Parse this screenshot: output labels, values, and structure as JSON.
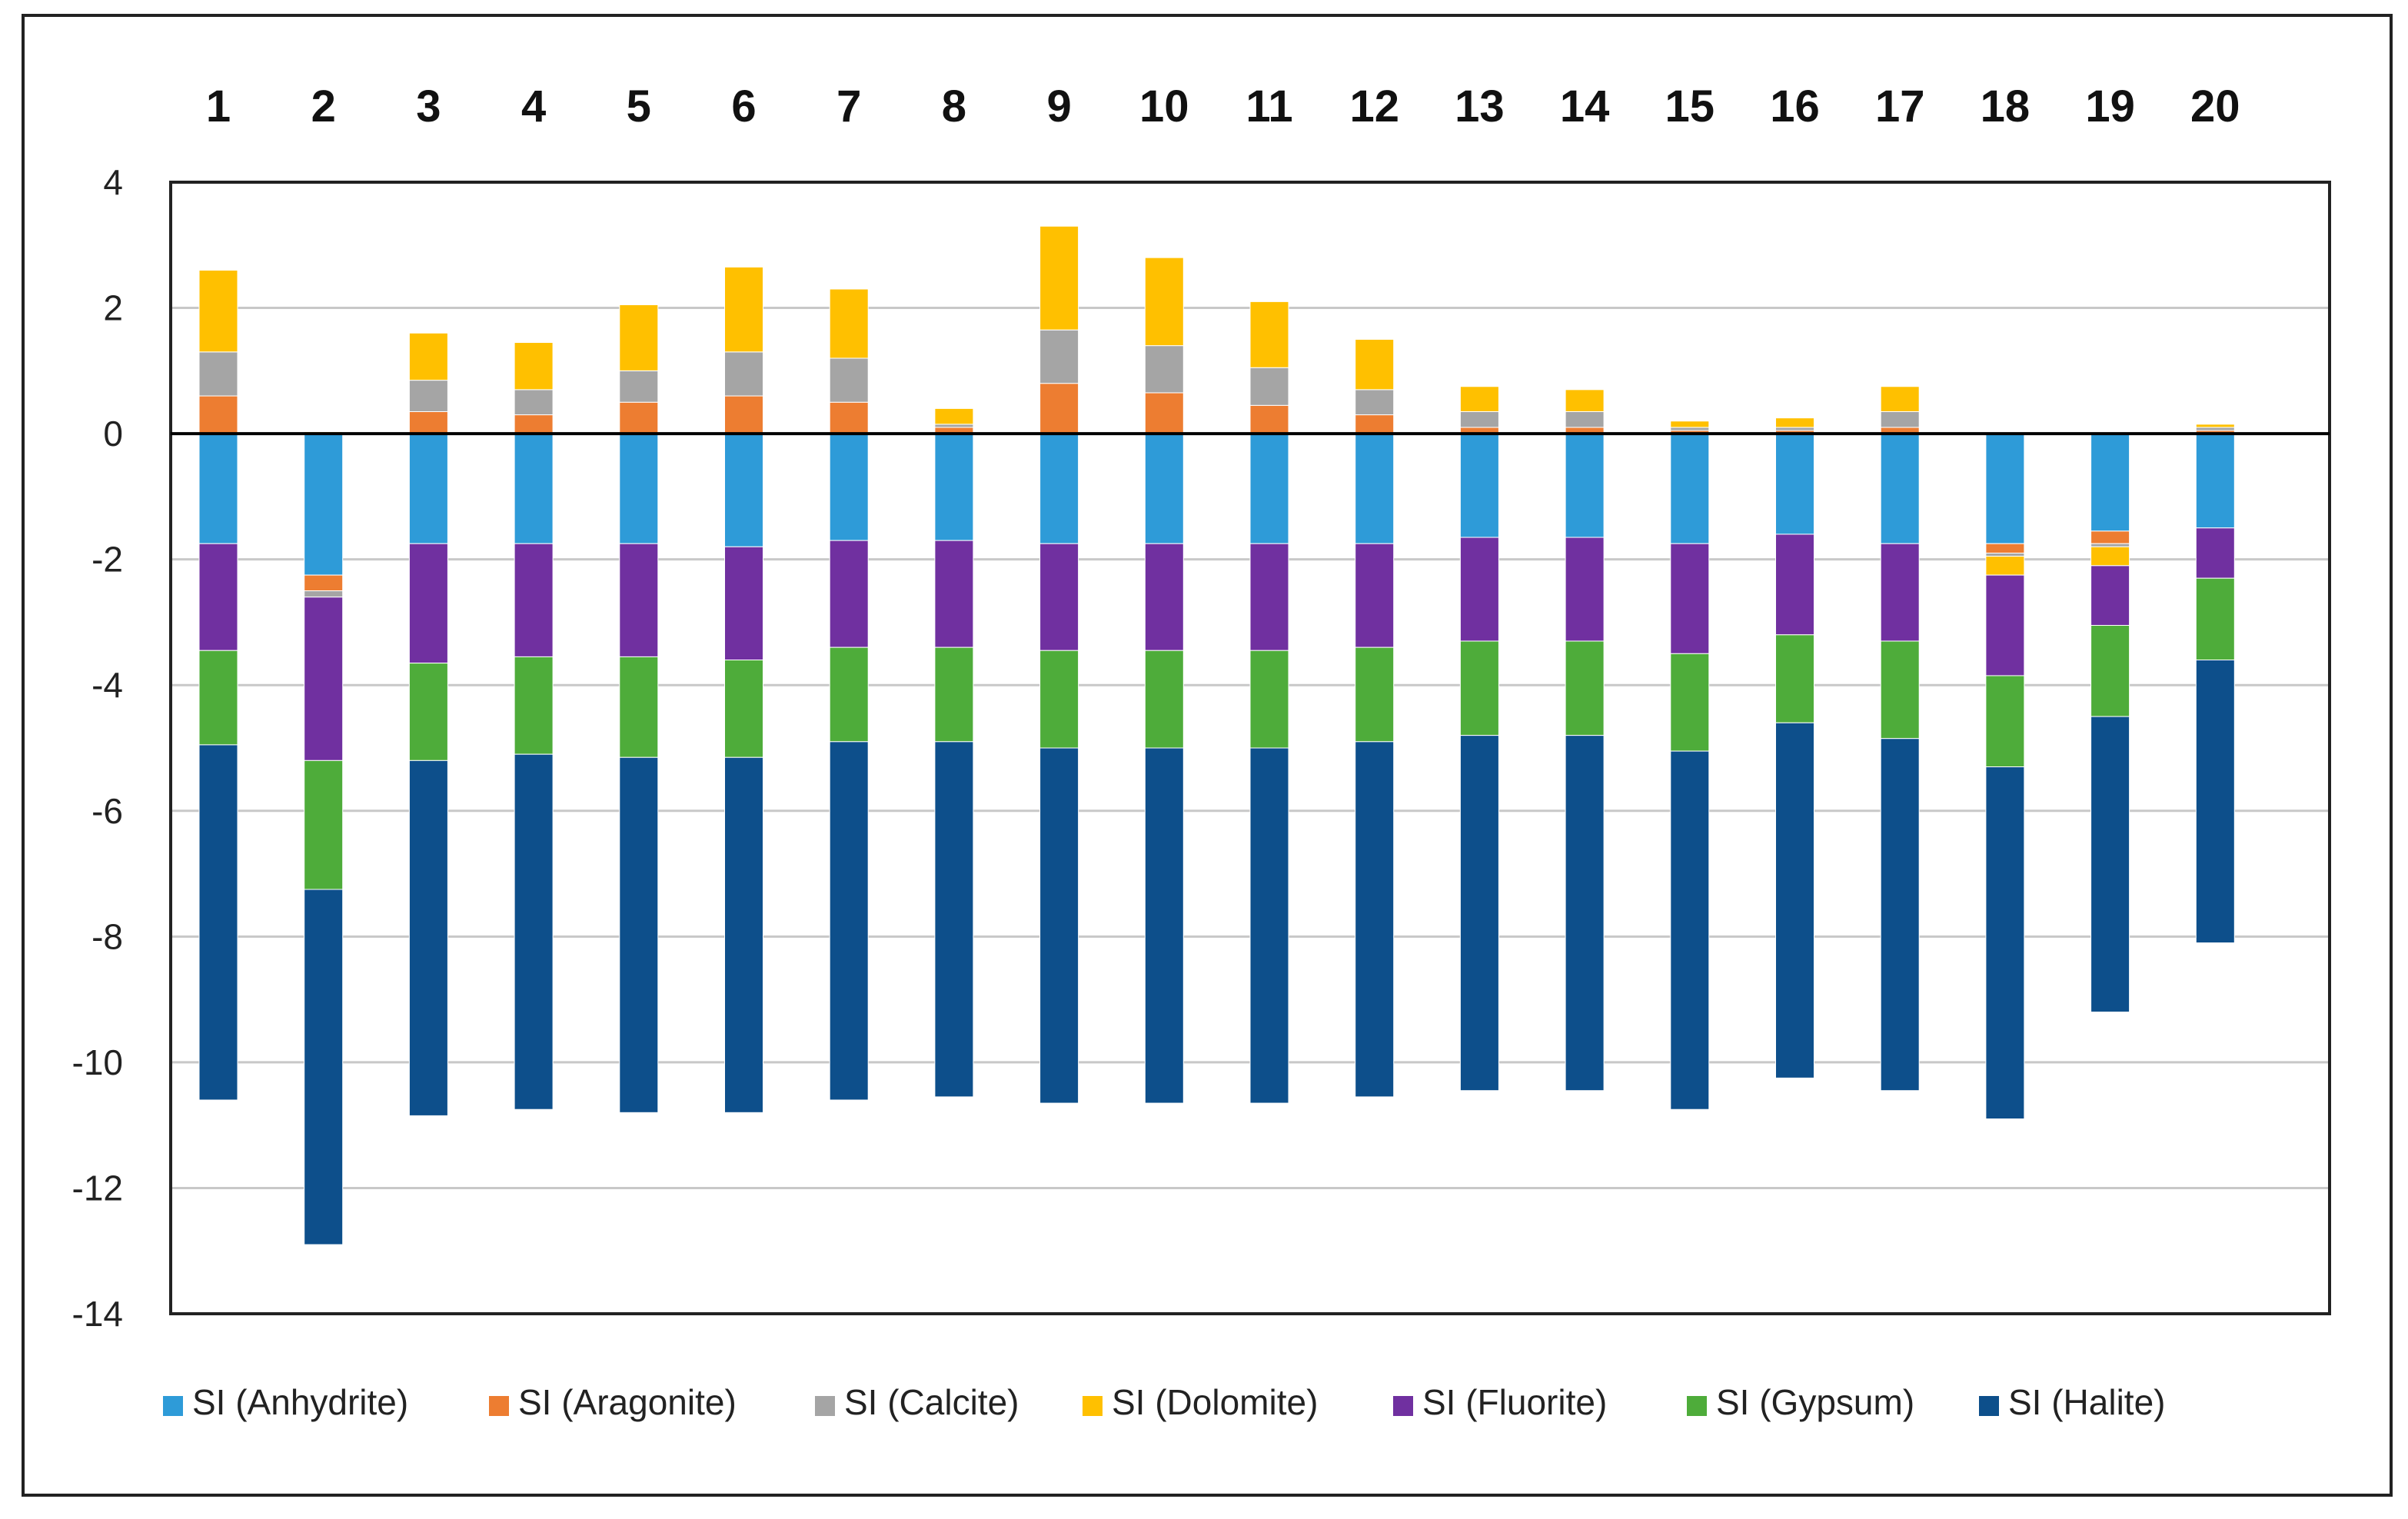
{
  "chart_data": {
    "type": "bar",
    "stacked": true,
    "title": "",
    "xlabel": "",
    "ylabel": "",
    "categories": [
      "1",
      "2",
      "3",
      "4",
      "5",
      "6",
      "7",
      "8",
      "9",
      "10",
      "11",
      "12",
      "13",
      "14",
      "15",
      "16",
      "17",
      "18",
      "19",
      "20"
    ],
    "ylim": [
      -14,
      4
    ],
    "yticks": [
      4,
      2,
      0,
      -2,
      -4,
      -6,
      -8,
      -10,
      -12,
      -14
    ],
    "grid": true,
    "legend_position": "bottom",
    "series": [
      {
        "name": "SI (Anhydrite)",
        "color": "#2E9BD8",
        "values": [
          -1.75,
          -2.25,
          -1.75,
          -1.75,
          -1.75,
          -1.8,
          -1.7,
          -1.7,
          -1.75,
          -1.75,
          -1.75,
          -1.75,
          -1.65,
          -1.65,
          -1.75,
          -1.6,
          -1.75,
          -1.75,
          -1.55,
          -1.5
        ]
      },
      {
        "name": "SI (Aragonite)",
        "color": "#ED7D31",
        "values": [
          0.6,
          -0.25,
          0.35,
          0.3,
          0.5,
          0.6,
          0.5,
          0.1,
          0.8,
          0.65,
          0.45,
          0.3,
          0.1,
          0.1,
          0.05,
          0.05,
          0.1,
          -0.15,
          -0.2,
          0.05
        ]
      },
      {
        "name": "SI (Calcite)",
        "color": "#A5A5A5",
        "values": [
          0.7,
          -0.1,
          0.5,
          0.4,
          0.5,
          0.7,
          0.7,
          0.05,
          0.85,
          0.75,
          0.6,
          0.4,
          0.25,
          0.25,
          0.05,
          0.05,
          0.25,
          -0.05,
          -0.05,
          0.05
        ]
      },
      {
        "name": "SI (Dolomite)",
        "color": "#FFC000",
        "values": [
          1.3,
          0.03,
          0.75,
          0.75,
          1.05,
          1.35,
          1.1,
          0.25,
          1.65,
          1.4,
          1.05,
          0.8,
          0.4,
          0.35,
          0.1,
          0.15,
          0.4,
          -0.3,
          -0.3,
          0.05
        ]
      },
      {
        "name": "SI (Fluorite)",
        "color": "#7030A0",
        "values": [
          -1.7,
          -2.6,
          -1.9,
          -1.8,
          -1.8,
          -1.8,
          -1.7,
          -1.7,
          -1.7,
          -1.7,
          -1.7,
          -1.65,
          -1.65,
          -1.65,
          -1.75,
          -1.6,
          -1.55,
          -1.6,
          -0.95,
          -0.8
        ]
      },
      {
        "name": "SI (Gypsum)",
        "color": "#4EAC3A",
        "values": [
          -1.5,
          -2.05,
          -1.55,
          -1.55,
          -1.6,
          -1.55,
          -1.5,
          -1.5,
          -1.55,
          -1.55,
          -1.55,
          -1.5,
          -1.5,
          -1.5,
          -1.55,
          -1.4,
          -1.55,
          -1.45,
          -1.45,
          -1.3
        ]
      },
      {
        "name": "SI (Halite)",
        "color": "#0D4F8B",
        "values": [
          -5.65,
          -5.65,
          -5.65,
          -5.65,
          -5.65,
          -5.65,
          -5.7,
          -5.65,
          -5.65,
          -5.65,
          -5.65,
          -5.65,
          -5.65,
          -5.65,
          -5.7,
          -5.65,
          -5.6,
          -5.6,
          -4.7,
          -4.5
        ]
      }
    ]
  }
}
